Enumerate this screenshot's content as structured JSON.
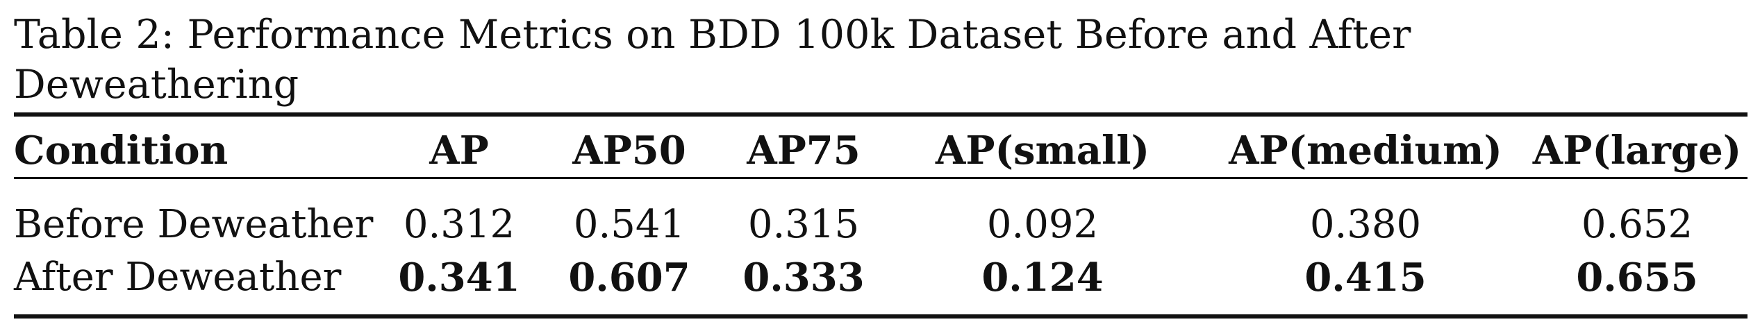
{
  "caption": {
    "label": "Table 2:",
    "text": "Performance Metrics on BDD 100k Dataset Before and After Deweathering"
  },
  "table": {
    "headers": [
      "Condition",
      "AP",
      "AP50",
      "AP75",
      "AP(small)",
      "AP(medium)",
      "AP(large)"
    ],
    "rows": [
      {
        "condition": "Before Deweather",
        "values": [
          "0.312",
          "0.541",
          "0.315",
          "0.092",
          "0.380",
          "0.652"
        ],
        "bold": false
      },
      {
        "condition": "After Deweather",
        "values": [
          "0.341",
          "0.607",
          "0.333",
          "0.124",
          "0.415",
          "0.655"
        ],
        "bold": true
      }
    ]
  }
}
